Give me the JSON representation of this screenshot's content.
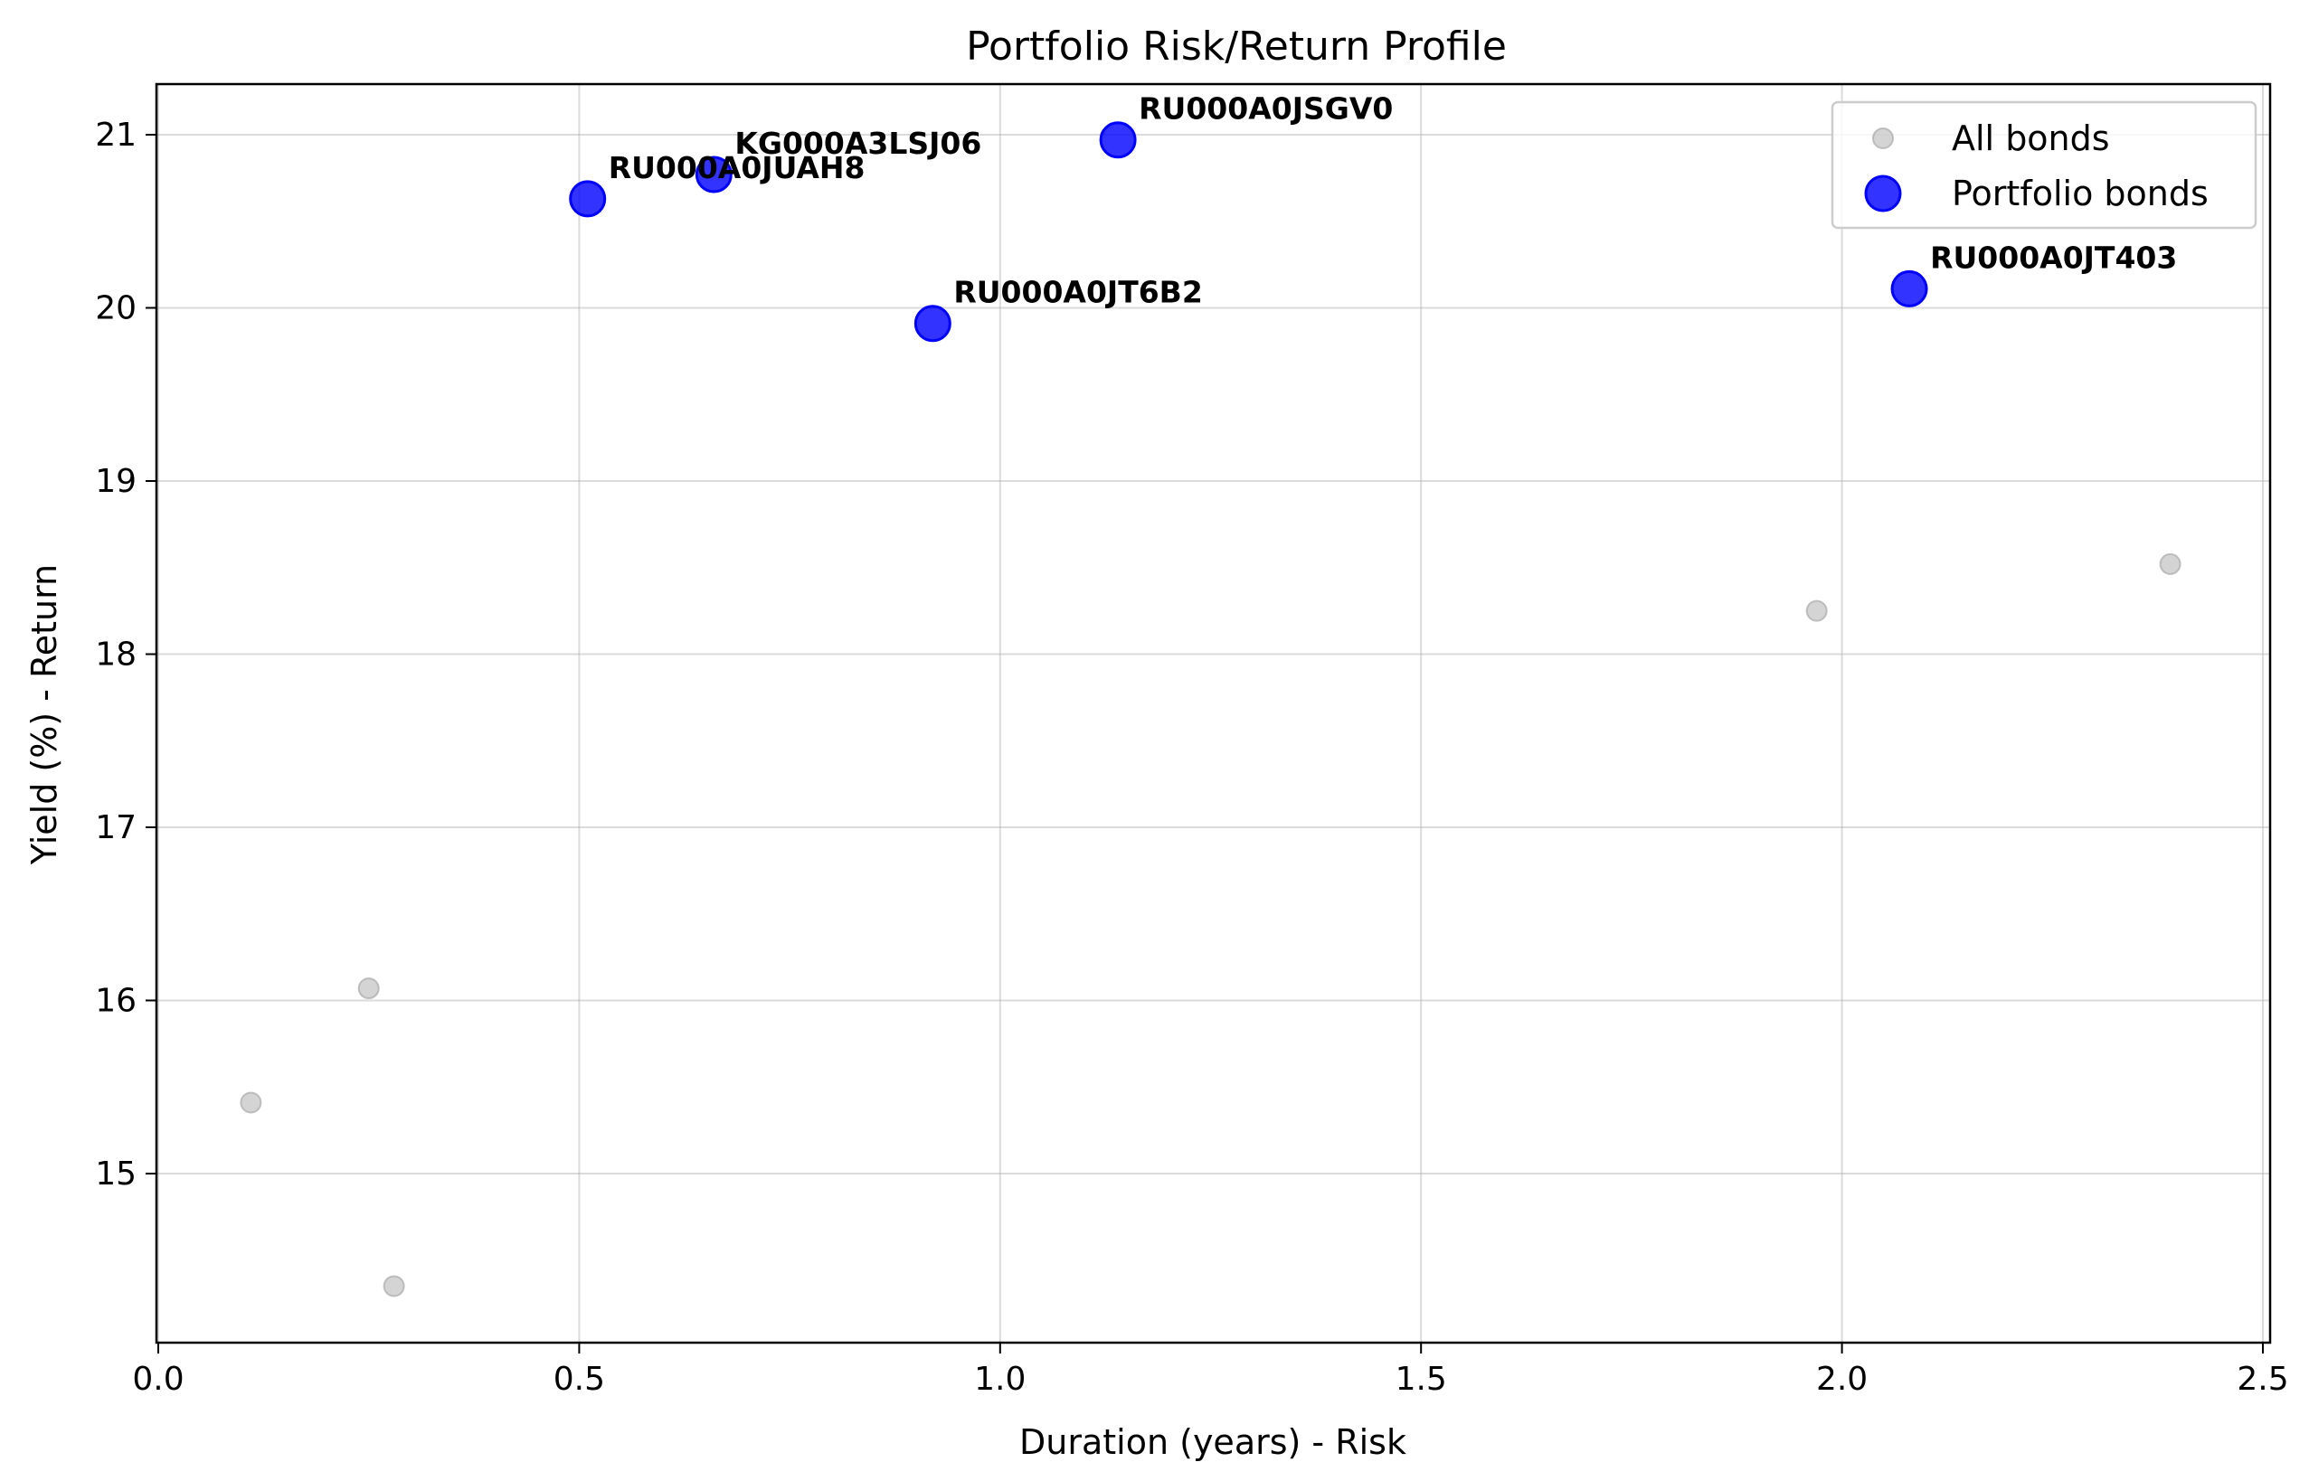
{
  "chart_data": {
    "type": "scatter",
    "title": "Portfolio Risk/Return Profile",
    "xlabel": "Duration (years) - Risk",
    "ylabel": "Yield (%) - Return",
    "xlim": [
      0.0,
      2.5
    ],
    "ylim": [
      14.0,
      21.3
    ],
    "xticks": [
      "0.0",
      "0.5",
      "1.0",
      "1.5",
      "2.0",
      "2.5"
    ],
    "yticks": [
      "15",
      "16",
      "17",
      "18",
      "19",
      "20",
      "21"
    ],
    "grid": true,
    "legend_position": "top-right",
    "series": [
      {
        "name": "All bonds",
        "color": "#a9a9a9",
        "points": [
          {
            "x": 0.11,
            "y": 15.41
          },
          {
            "x": 0.25,
            "y": 16.07
          },
          {
            "x": 0.28,
            "y": 14.35
          },
          {
            "x": 1.97,
            "y": 18.25
          },
          {
            "x": 2.39,
            "y": 18.52
          }
        ]
      },
      {
        "name": "Portfolio bonds",
        "color": "#0000ff",
        "points": [
          {
            "x": 0.51,
            "y": 20.63,
            "label": "RU000A0JUAH8"
          },
          {
            "x": 0.66,
            "y": 20.77,
            "label": "KG000A3LSJ06"
          },
          {
            "x": 0.92,
            "y": 19.91,
            "label": "RU000A0JT6B2"
          },
          {
            "x": 1.14,
            "y": 20.97,
            "label": "RU000A0JSGV0"
          },
          {
            "x": 2.08,
            "y": 20.11,
            "label": "RU000A0JT403"
          }
        ]
      }
    ]
  }
}
